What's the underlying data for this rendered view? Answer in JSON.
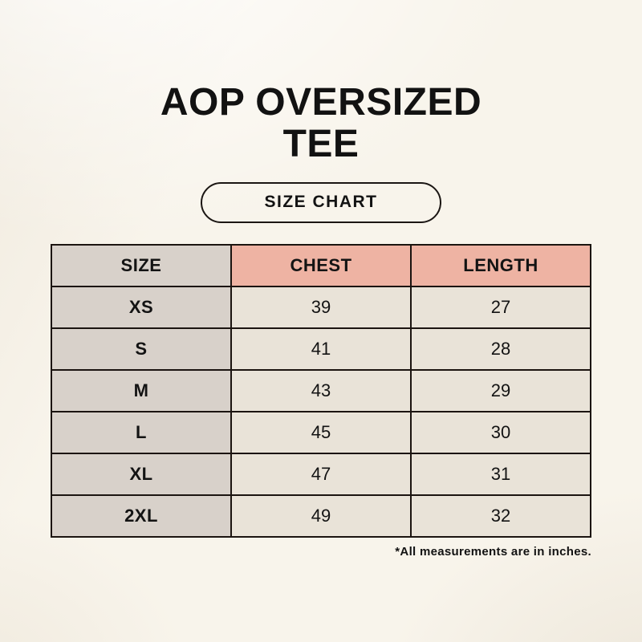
{
  "header": {
    "title_line1": "AOP OVERSIZED",
    "title_line2": "TEE",
    "badge_label": "SIZE CHART"
  },
  "chart_data": {
    "type": "table",
    "title": "AOP OVERSIZED TEE",
    "subtitle": "SIZE CHART",
    "units": "inches",
    "columns": [
      "SIZE",
      "CHEST",
      "LENGTH"
    ],
    "rows": [
      {
        "size": "XS",
        "chest": "39",
        "length": "27"
      },
      {
        "size": "S",
        "chest": "41",
        "length": "28"
      },
      {
        "size": "M",
        "chest": "43",
        "length": "29"
      },
      {
        "size": "L",
        "chest": "45",
        "length": "30"
      },
      {
        "size": "XL",
        "chest": "47",
        "length": "31"
      },
      {
        "size": "2XL",
        "chest": "49",
        "length": "32"
      }
    ]
  },
  "footnote": "*All measurements are in inches.",
  "colors": {
    "background": "#f8f4eb",
    "size_column_bg": "#d8d1ca",
    "accent_header_bg": "#eeb3a3",
    "value_cell_bg": "#e9e3d8",
    "border": "#1b1410",
    "text": "#121212"
  }
}
